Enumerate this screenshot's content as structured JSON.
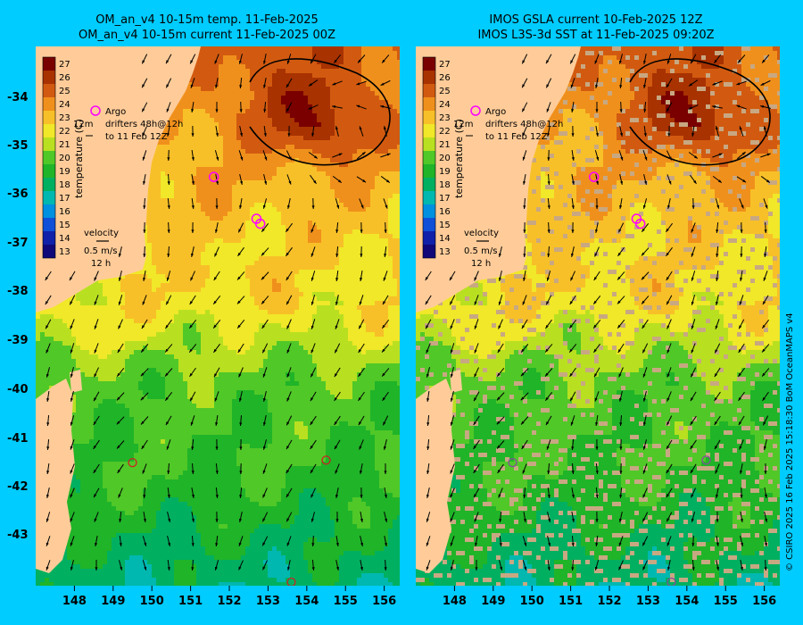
{
  "left": {
    "title_line1": "OM_an_v4  10-15m temp. 11-Feb-2025",
    "title_line2": "OM_an_v4  10-15m current 11-Feb-2025 00Z"
  },
  "right": {
    "title_line1": "IMOS GSLA current 10-Feb-2025 12Z",
    "title_line2": "IMOS L3S-3d SST at 11-Feb-2025 09:20Z"
  },
  "colorbar": {
    "label": "temperature (C)",
    "ticks": [
      "27",
      "26",
      "25",
      "24",
      "23",
      "22",
      "21",
      "20",
      "19",
      "18",
      "17",
      "16",
      "15",
      "14",
      "13"
    ]
  },
  "legend": {
    "argo": "Argo",
    "drifters": "drifters 48h@12h",
    "depth_prefix": "12m",
    "drifters_to": "to 11 Feb 12Z"
  },
  "velocity_key": {
    "title": "velocity",
    "speed": "0.5 m/s",
    "time": "12 h"
  },
  "lat_labels": [
    "-34",
    "-35",
    "-36",
    "-37",
    "-38",
    "-39",
    "-40",
    "-41",
    "-42",
    "-43"
  ],
  "lon_labels": [
    "148",
    "149",
    "150",
    "151",
    "152",
    "153",
    "154",
    "155",
    "156"
  ],
  "credit": "© CSIRO 2025   16 Feb 2025 15:18:30 BoM OceanMAPS v4",
  "map_data": {
    "lat_range": [
      -43.95,
      -33.0
    ],
    "lon_range": [
      147.0,
      156.4
    ],
    "argo_floats": [
      {
        "lon": 151.6,
        "lat": -35.65
      },
      {
        "lon": 152.7,
        "lat": -36.5
      },
      {
        "lon": 152.8,
        "lat": -36.6
      }
    ],
    "drifters": [
      {
        "lon": 149.5,
        "lat": -41.45
      },
      {
        "lon": 154.5,
        "lat": -41.4
      },
      {
        "lon": 153.6,
        "lat": -43.95
      }
    ],
    "colors": {
      "land": "#ffcc99",
      "background": "#00ccff",
      "argo": "#ff00ff",
      "drifter": "#cc2222",
      "missing_sst": "#c8a882"
    }
  }
}
